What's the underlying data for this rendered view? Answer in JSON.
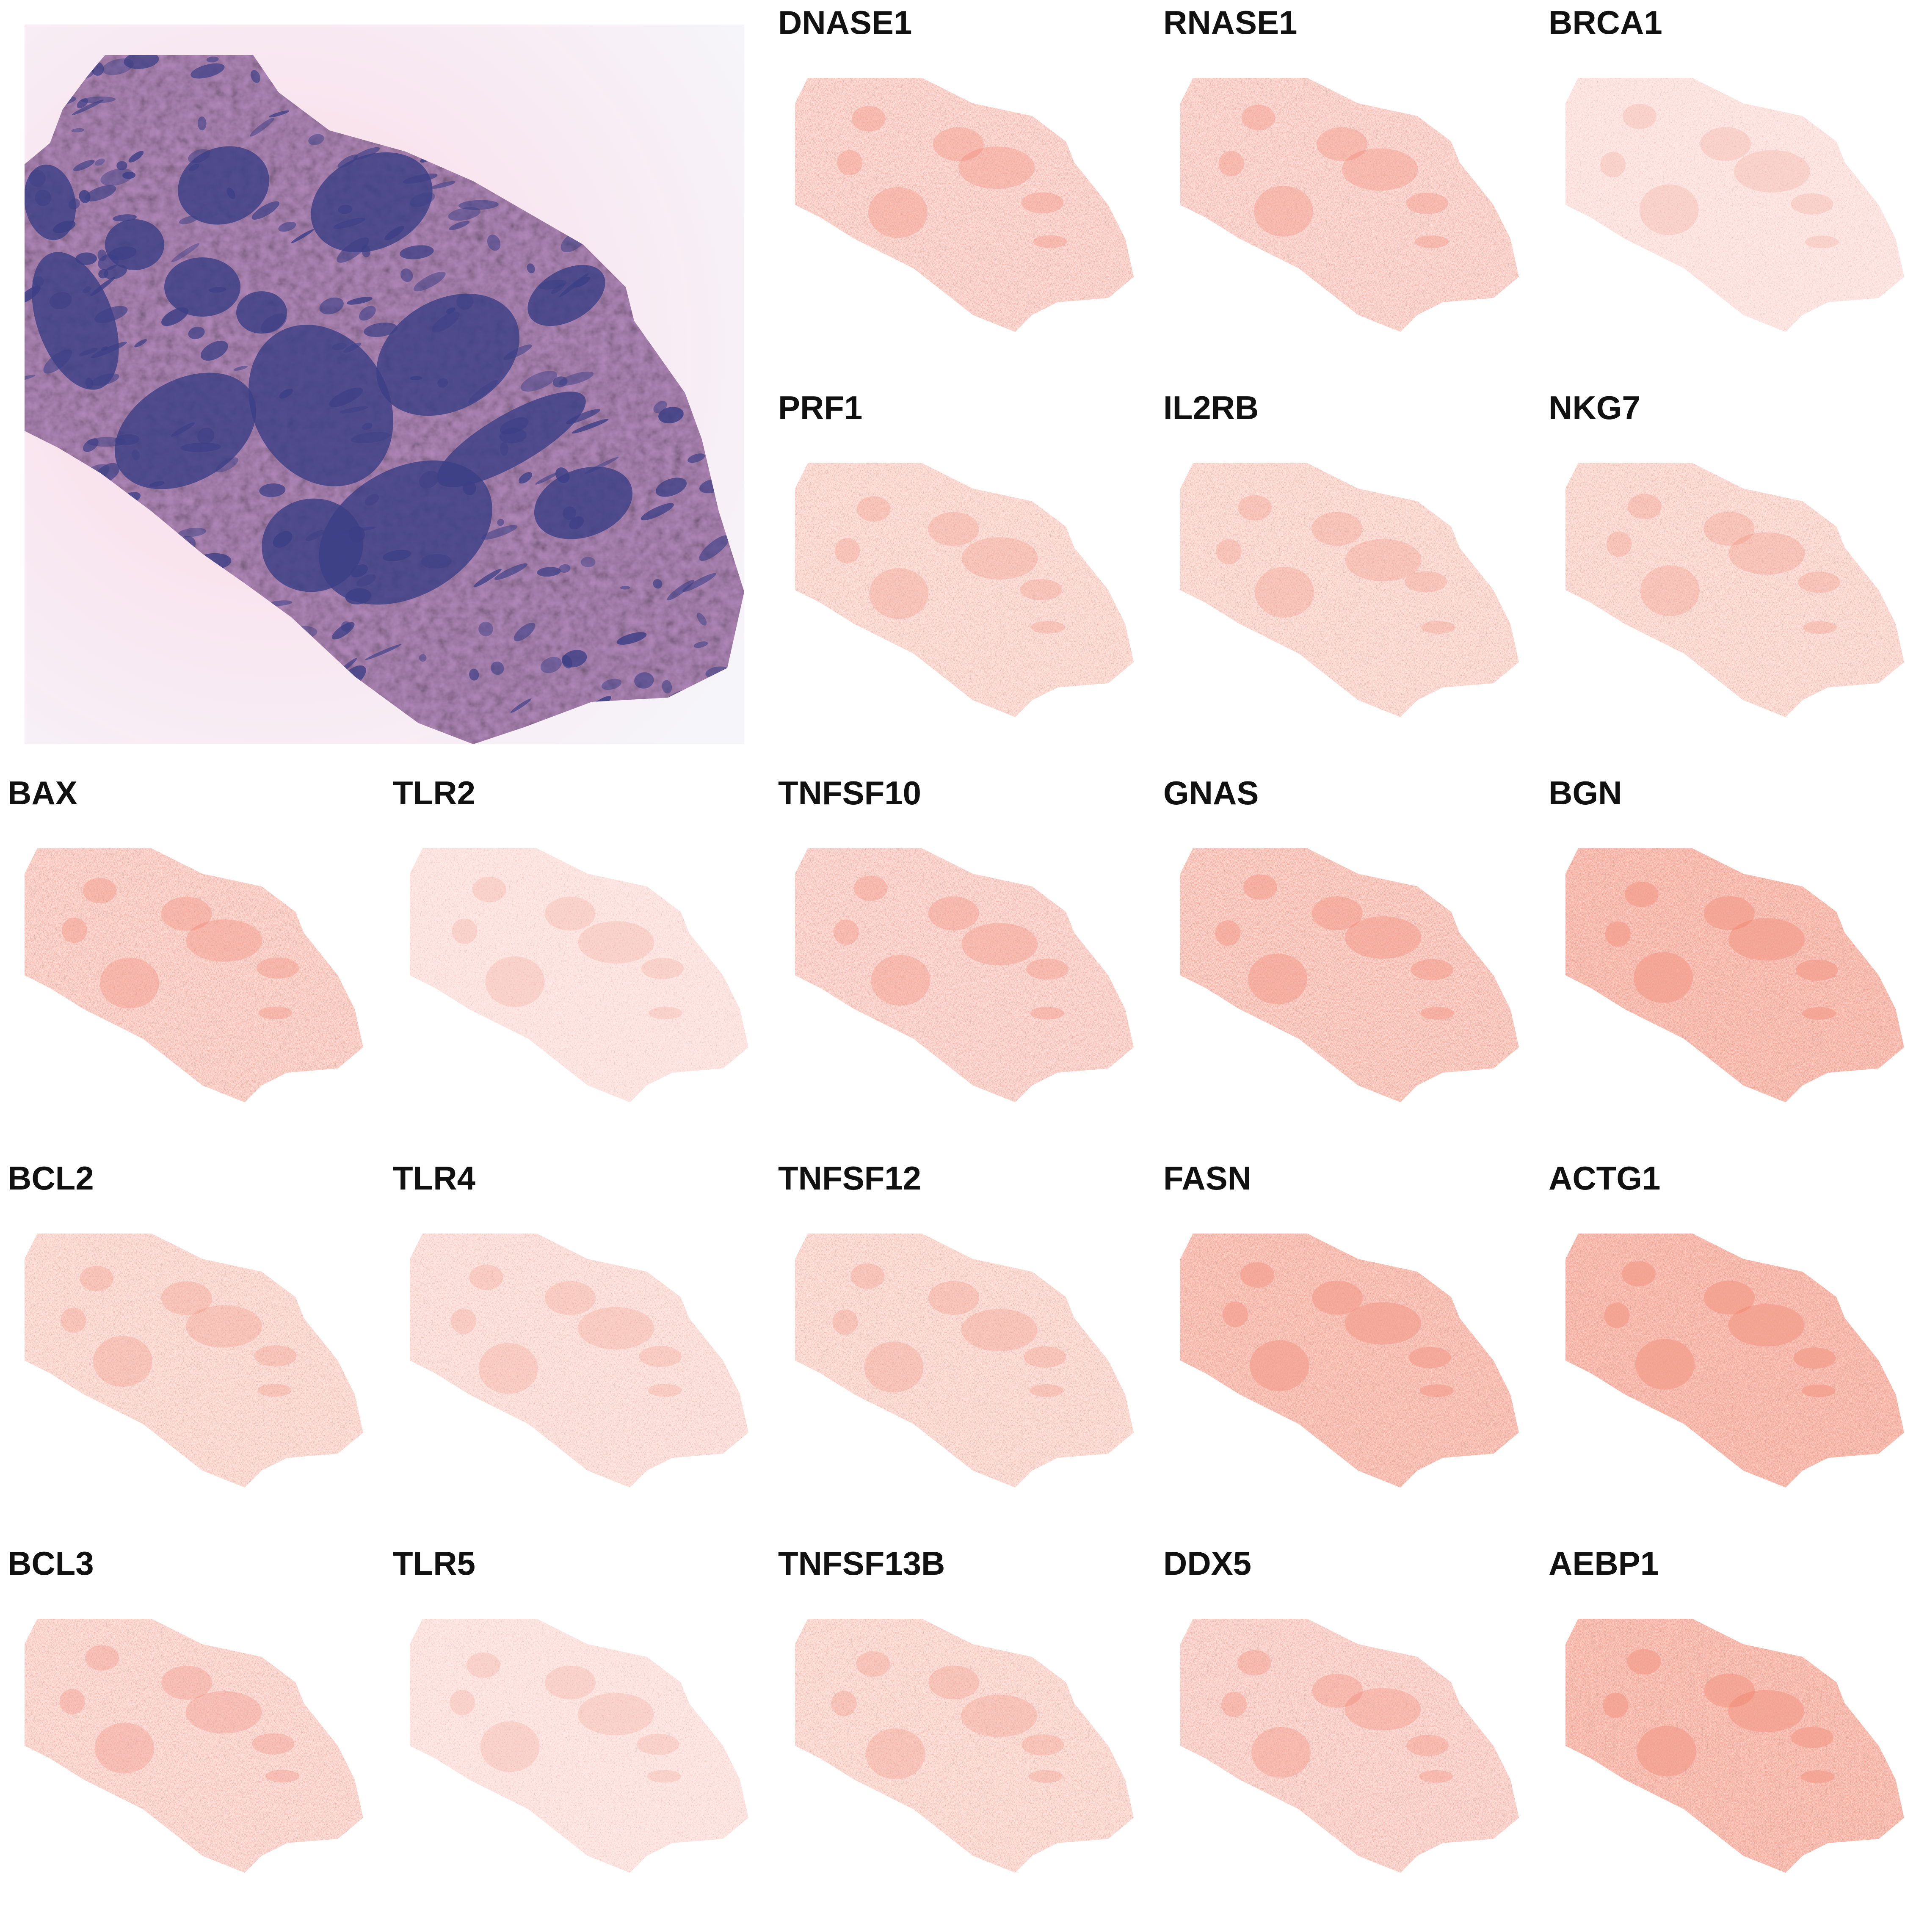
{
  "figure": {
    "he_image": {
      "name": "H&E tissue section"
    },
    "panels": [
      {
        "gene": "DNASE1",
        "intensity": 0.55
      },
      {
        "gene": "RNASE1",
        "intensity": 0.55
      },
      {
        "gene": "BRCA1",
        "intensity": 0.25
      },
      {
        "gene": "PRF1",
        "intensity": 0.45
      },
      {
        "gene": "IL2RB",
        "intensity": 0.45
      },
      {
        "gene": "NKG7",
        "intensity": 0.45
      },
      {
        "gene": "BAX",
        "intensity": 0.6
      },
      {
        "gene": "TLR2",
        "intensity": 0.25
      },
      {
        "gene": "TNFSF10",
        "intensity": 0.55
      },
      {
        "gene": "GNAS",
        "intensity": 0.7
      },
      {
        "gene": "BGN",
        "intensity": 0.85
      },
      {
        "gene": "BCL2",
        "intensity": 0.45
      },
      {
        "gene": "TLR4",
        "intensity": 0.35
      },
      {
        "gene": "TNFSF12",
        "intensity": 0.45
      },
      {
        "gene": "FASN",
        "intensity": 0.8
      },
      {
        "gene": "ACTG1",
        "intensity": 0.9
      },
      {
        "gene": "BCL3",
        "intensity": 0.5
      },
      {
        "gene": "TLR5",
        "intensity": 0.25
      },
      {
        "gene": "TNFSF13B",
        "intensity": 0.45
      },
      {
        "gene": "DDX5",
        "intensity": 0.55
      },
      {
        "gene": "AEBP1",
        "intensity": 0.85
      }
    ],
    "colors": {
      "heatmap_high": "#e8563f",
      "heatmap_low": "#ffffff",
      "he_nuclei": "#3c3f86",
      "he_stroma": "#b48bbc",
      "he_background": "#fbe6ef"
    }
  }
}
